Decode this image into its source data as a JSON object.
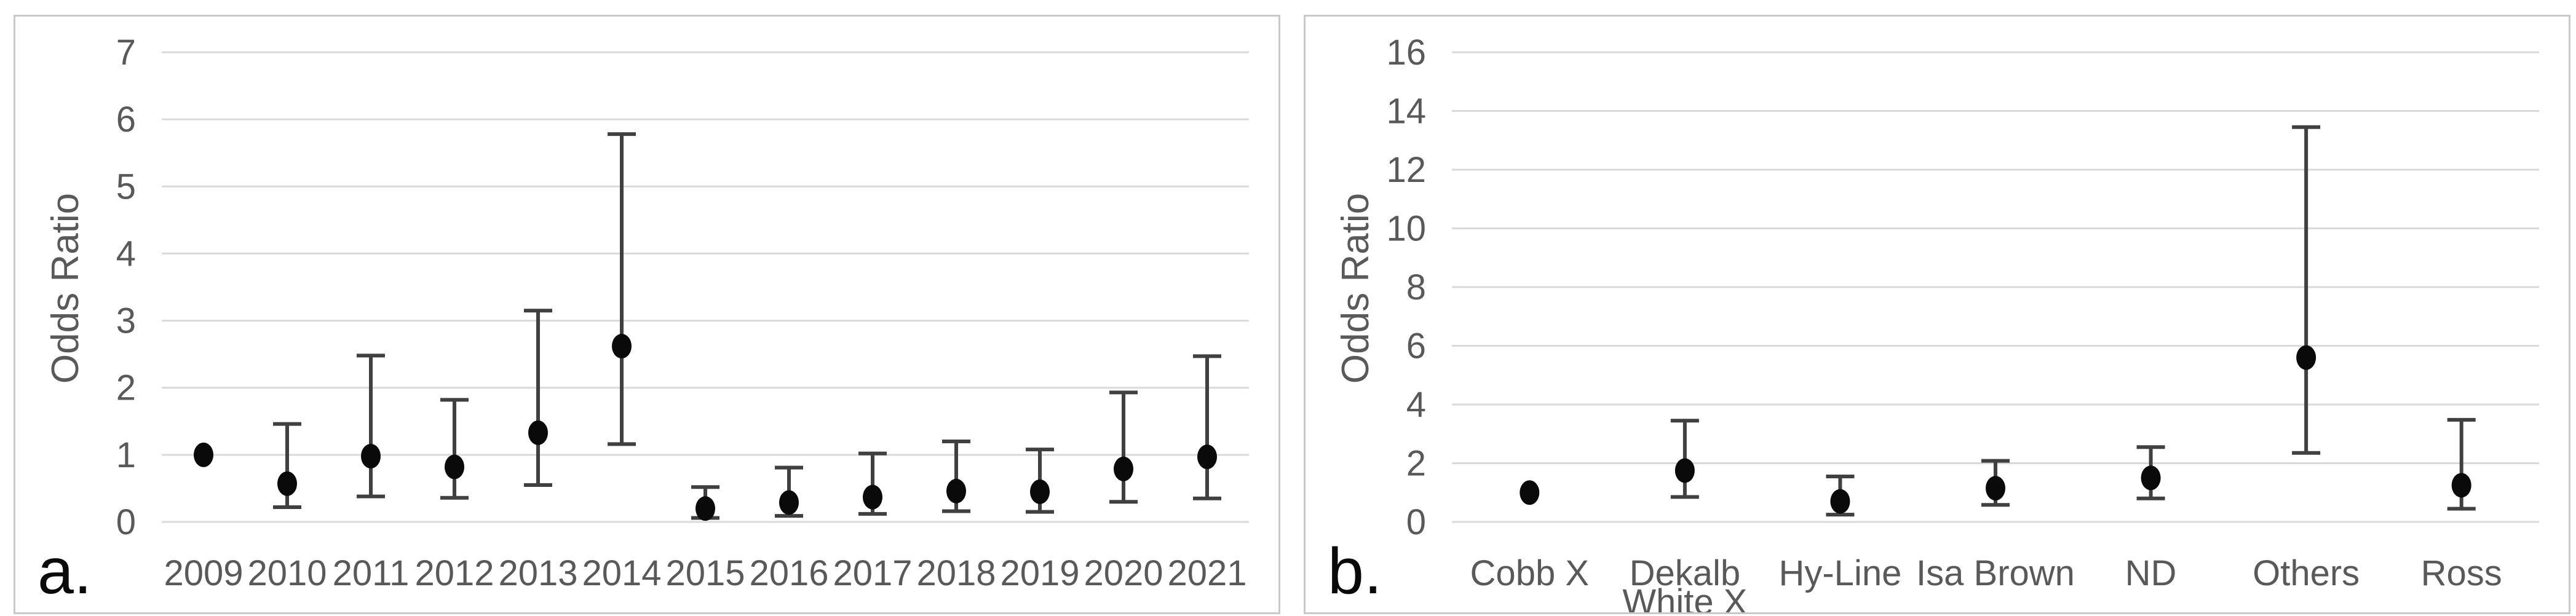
{
  "figure_labels": {
    "panel_a": "a.",
    "panel_b": "b."
  },
  "style": {
    "background": "#ffffff",
    "panel_border_color": "#c9c9c9",
    "gridline_color": "#d9d9d9",
    "axis_text_color": "#595959",
    "panel_letter_color": "#0a0a0a",
    "marker_color": "#0a0a0a",
    "errorbar_color": "#404040"
  },
  "chart_data": [
    {
      "panel": "a.",
      "type": "scatter",
      "subtype": "point-estimates-with-95ci-error-bars",
      "title": "",
      "xlabel": "",
      "ylabel": "Odds Ratio",
      "ylim": [
        0,
        7
      ],
      "ytick_step": 1,
      "grid": "horizontal",
      "legend": "none",
      "categories": [
        "2009",
        "2010",
        "2011",
        "2012",
        "2013",
        "2014",
        "2015",
        "2016",
        "2017",
        "2018",
        "2019",
        "2020",
        "2021"
      ],
      "category_lines": [
        [
          "2009"
        ],
        [
          "2010"
        ],
        [
          "2011"
        ],
        [
          "2012"
        ],
        [
          "2013"
        ],
        [
          "2014"
        ],
        [
          "2015"
        ],
        [
          "2016"
        ],
        [
          "2017"
        ],
        [
          "2018"
        ],
        [
          "2019"
        ],
        [
          "2020"
        ],
        [
          "2021"
        ]
      ],
      "series": [
        {
          "name": "Odds Ratio",
          "values": [
            1.0,
            0.57,
            0.98,
            0.82,
            1.33,
            2.62,
            0.2,
            0.29,
            0.37,
            0.46,
            0.45,
            0.79,
            0.97
          ]
        },
        {
          "name": "95% CI lower",
          "values": [
            null,
            0.22,
            0.38,
            0.36,
            0.55,
            1.16,
            0.06,
            0.09,
            0.12,
            0.16,
            0.15,
            0.3,
            0.35
          ]
        },
        {
          "name": "95% CI upper",
          "values": [
            null,
            1.46,
            2.48,
            1.82,
            3.15,
            5.78,
            0.52,
            0.81,
            1.02,
            1.2,
            1.08,
            1.93,
            2.47
          ]
        }
      ]
    },
    {
      "panel": "b.",
      "type": "scatter",
      "subtype": "point-estimates-with-95ci-error-bars",
      "title": "",
      "xlabel": "",
      "ylabel": "Odds Ratio",
      "ylim": [
        0,
        16
      ],
      "ytick_step": 2,
      "grid": "horizontal",
      "legend": "none",
      "categories": [
        "Cobb X",
        "Dekalb White X",
        "Hy-Line",
        "Isa Brown",
        "ND",
        "Others",
        "Ross"
      ],
      "category_lines": [
        [
          "Cobb X"
        ],
        [
          "Dekalb",
          "White X"
        ],
        [
          "Hy-Line"
        ],
        [
          "Isa Brown"
        ],
        [
          "ND"
        ],
        [
          "Others"
        ],
        [
          "Ross"
        ]
      ],
      "series": [
        {
          "name": "Odds Ratio",
          "values": [
            1.0,
            1.75,
            0.7,
            1.15,
            1.5,
            5.6,
            1.25
          ]
        },
        {
          "name": "95% CI lower",
          "values": [
            null,
            0.85,
            0.25,
            0.58,
            0.8,
            2.35,
            0.45
          ]
        },
        {
          "name": "95% CI upper",
          "values": [
            null,
            3.45,
            1.55,
            2.08,
            2.55,
            13.45,
            3.48
          ]
        }
      ]
    }
  ]
}
